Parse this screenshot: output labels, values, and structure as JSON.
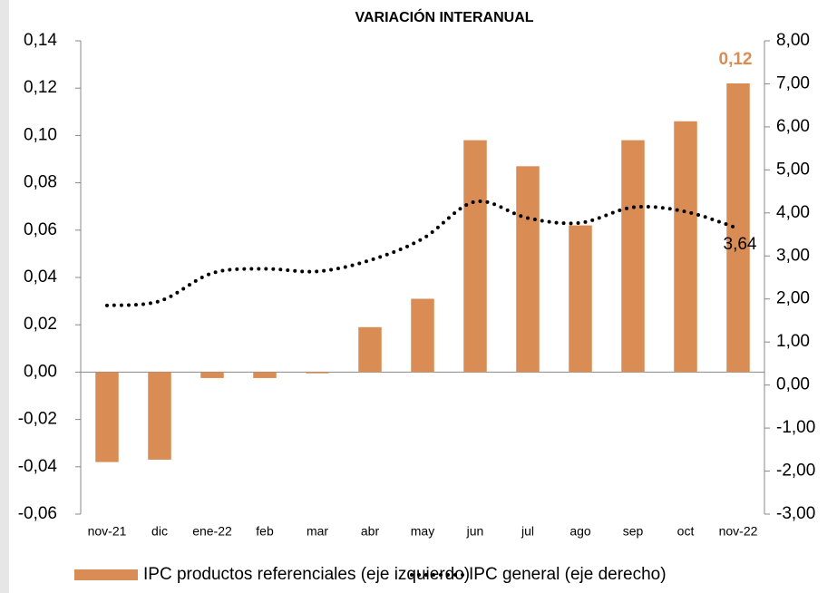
{
  "chart_data": {
    "type": "bar_line_dual_axis",
    "title": "VARIACIÓN INTERANUAL",
    "categories": [
      "nov-21",
      "dic",
      "ene-22",
      "feb",
      "mar",
      "abr",
      "may",
      "jun",
      "jul",
      "ago",
      "sep",
      "oct",
      "nov-22"
    ],
    "series": [
      {
        "name": "IPC productos referenciales (eje izquierdo)",
        "type": "bar",
        "color": "#d98d55",
        "axis": "y",
        "values": [
          -0.038,
          -0.037,
          -0.0025,
          -0.0025,
          -0.0005,
          0.019,
          0.031,
          0.098,
          0.087,
          0.062,
          0.098,
          0.106,
          0.122
        ],
        "value_labels": [
          null,
          null,
          null,
          null,
          null,
          null,
          null,
          null,
          null,
          null,
          null,
          null,
          "0,12"
        ]
      },
      {
        "name": "IPC general (eje derecho)",
        "type": "line",
        "color": "#000000",
        "axis": "y2",
        "values": [
          1.85,
          1.95,
          2.6,
          2.7,
          2.64,
          2.9,
          3.4,
          4.26,
          3.88,
          3.77,
          4.13,
          4.03,
          3.64
        ],
        "value_labels": [
          null,
          null,
          null,
          null,
          null,
          null,
          null,
          null,
          null,
          null,
          null,
          null,
          "3,64"
        ]
      }
    ],
    "ylim": [
      -0.06,
      0.14
    ],
    "yticks": [
      {
        "value": -0.06,
        "label": "-0,06"
      },
      {
        "value": -0.04,
        "label": "-0,04"
      },
      {
        "value": -0.02,
        "label": "-0,02"
      },
      {
        "value": 0,
        "label": "0,00"
      },
      {
        "value": 0.02,
        "label": "0,02"
      },
      {
        "value": 0.04,
        "label": "0,04"
      },
      {
        "value": 0.06,
        "label": "0,06"
      },
      {
        "value": 0.08,
        "label": "0,08"
      },
      {
        "value": 0.1,
        "label": "0,10"
      },
      {
        "value": 0.12,
        "label": "0,12"
      },
      {
        "value": 0.14,
        "label": "0,14"
      }
    ],
    "y2lim": [
      -3,
      8
    ],
    "y2ticks": [
      {
        "value": -3,
        "label": "-3,00"
      },
      {
        "value": -2,
        "label": "-2,00"
      },
      {
        "value": -1,
        "label": "-1,00"
      },
      {
        "value": 0,
        "label": "0,00"
      },
      {
        "value": 1,
        "label": "1,00"
      },
      {
        "value": 2,
        "label": "2,00"
      },
      {
        "value": 3,
        "label": "3,00"
      },
      {
        "value": 4,
        "label": "4,00"
      },
      {
        "value": 5,
        "label": "5,00"
      },
      {
        "value": 6,
        "label": "6,00"
      },
      {
        "value": 7,
        "label": "7,00"
      },
      {
        "value": 8,
        "label": "8,00"
      }
    ],
    "grid": false,
    "legend": "bottom"
  }
}
